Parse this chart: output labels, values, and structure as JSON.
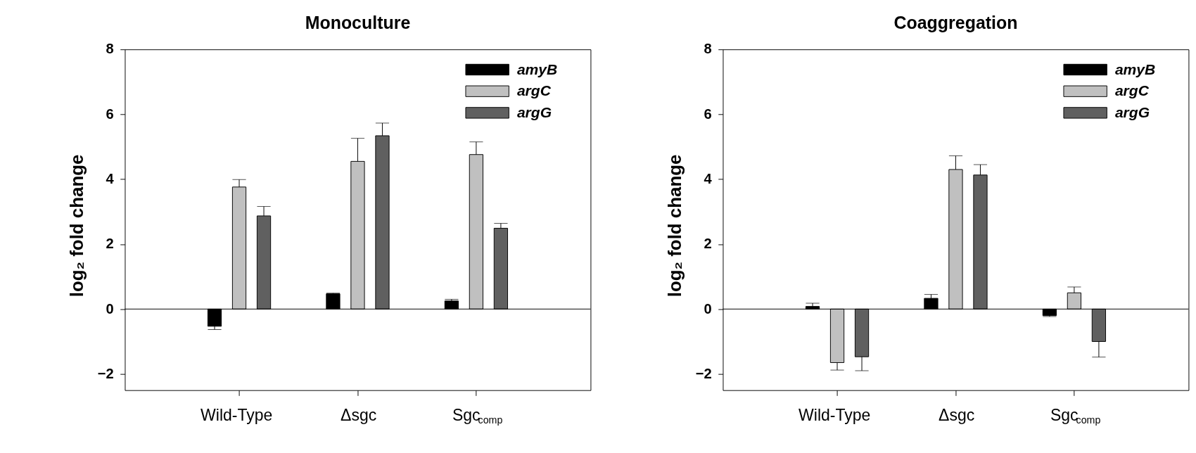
{
  "chart_data": [
    {
      "type": "bar",
      "title": "Monoculture",
      "ylabel": "log₂ fold change",
      "categories": [
        "Wild-Type",
        "Δsgc",
        "Sgc$_{comp}$"
      ],
      "series": [
        {
          "name": "amyB",
          "color": "#000000",
          "values": [
            -0.53,
            0.47,
            0.25
          ],
          "errors": [
            [
              -0.63,
              -0.53
            ],
            [
              0.47,
              0.49
            ],
            [
              0.25,
              0.3
            ]
          ]
        },
        {
          "name": "argC",
          "color": "#c0c0c0",
          "values": [
            3.76,
            4.55,
            4.76
          ],
          "errors": [
            [
              3.76,
              3.99
            ],
            [
              4.55,
              5.26
            ],
            [
              4.76,
              5.15
            ]
          ]
        },
        {
          "name": "argG",
          "color": "#606060",
          "values": [
            2.87,
            5.34,
            2.49
          ],
          "errors": [
            [
              2.87,
              3.16
            ],
            [
              5.34,
              5.73
            ],
            [
              2.49,
              2.64
            ]
          ]
        }
      ],
      "ylim": [
        -2.5,
        8
      ],
      "yticks": [
        -2,
        0,
        2,
        4,
        6,
        8
      ],
      "grid": false,
      "legend": "top right",
      "ref_lines": [
        {
          "axis": "y",
          "value": 0
        }
      ]
    },
    {
      "type": "bar",
      "title": "Coaggregation",
      "ylabel": "log₂ fold change",
      "categories": [
        "Wild-Type",
        "Δsgc",
        "Sgc$_{comp}$"
      ],
      "series": [
        {
          "name": "amyB",
          "color": "#000000",
          "values": [
            0.08,
            0.33,
            -0.2
          ],
          "errors": [
            [
              0.08,
              0.18
            ],
            [
              0.33,
              0.45
            ],
            [
              -0.23,
              -0.2
            ]
          ]
        },
        {
          "name": "argC",
          "color": "#c0c0c0",
          "values": [
            -1.65,
            4.3,
            0.5
          ],
          "errors": [
            [
              -1.88,
              -1.65
            ],
            [
              4.3,
              4.72
            ],
            [
              0.5,
              0.68
            ]
          ]
        },
        {
          "name": "argG",
          "color": "#606060",
          "values": [
            -1.47,
            4.13,
            -1.0
          ],
          "errors": [
            [
              -1.9,
              -1.47
            ],
            [
              4.13,
              4.45
            ],
            [
              -1.48,
              -1.0
            ]
          ]
        }
      ],
      "ylim": [
        -2.5,
        8
      ],
      "yticks": [
        -2,
        0,
        2,
        4,
        6,
        8
      ],
      "grid": false,
      "legend": "top right",
      "ref_lines": [
        {
          "axis": "y",
          "value": 0
        }
      ]
    }
  ]
}
